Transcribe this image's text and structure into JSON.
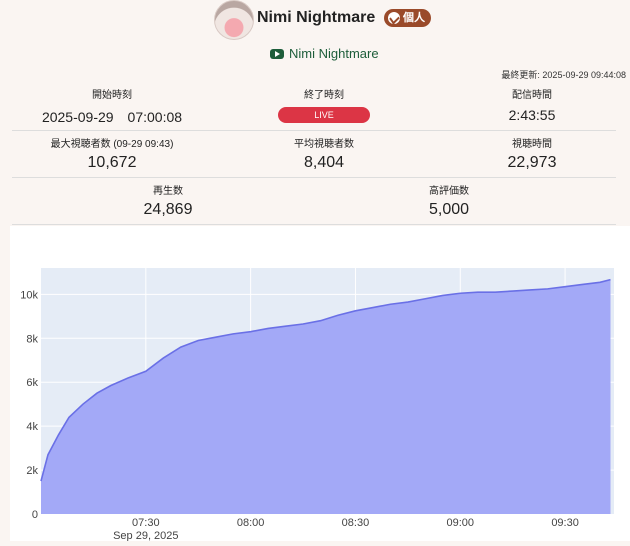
{
  "header": {
    "channel_name": "Nimi Nightmare",
    "badge_label": "個人",
    "youtube_channel": "Nimi Nightmare"
  },
  "updated": "最終更新: 2025-09-29 09:44:08",
  "stats": {
    "start_label": "開始時刻",
    "start_value": "2025-09-29　07:00:08",
    "end_label": "終了時刻",
    "end_value": "LIVE",
    "duration_label": "配信時間",
    "duration_value": "2:43:55",
    "max_viewers_label": "最大視聴者数 (09-29 09:43)",
    "max_viewers_value": "10,672",
    "avg_viewers_label": "平均視聴者数",
    "avg_viewers_value": "8,404",
    "watch_time_label": "視聴時間",
    "watch_time_value": "22,973",
    "plays_label": "再生数",
    "plays_value": "24,869",
    "likes_label": "高評価数",
    "likes_value": "5,000"
  },
  "colors": {
    "live": "#dc3545",
    "area_fill": "#a3a9f7",
    "area_line": "#6a70e6",
    "plot_bg": "#e5ecf6"
  },
  "chart_data": {
    "type": "area",
    "x": [
      "07:00",
      "07:02",
      "07:05",
      "07:08",
      "07:12",
      "07:16",
      "07:20",
      "07:25",
      "07:30",
      "07:35",
      "07:40",
      "07:45",
      "07:50",
      "07:55",
      "08:00",
      "08:05",
      "08:10",
      "08:15",
      "08:20",
      "08:25",
      "08:30",
      "08:35",
      "08:40",
      "08:45",
      "08:50",
      "08:55",
      "09:00",
      "09:05",
      "09:10",
      "09:15",
      "09:20",
      "09:25",
      "09:30",
      "09:35",
      "09:40",
      "09:43"
    ],
    "values": [
      1500,
      2700,
      3600,
      4400,
      5000,
      5500,
      5850,
      6200,
      6500,
      7100,
      7600,
      7900,
      8050,
      8200,
      8300,
      8450,
      8550,
      8650,
      8800,
      9050,
      9250,
      9400,
      9550,
      9650,
      9800,
      9950,
      10050,
      10100,
      10100,
      10150,
      10200,
      10250,
      10350,
      10450,
      10550,
      10672
    ],
    "x_ticks": [
      "07:30",
      "08:00",
      "08:30",
      "09:00",
      "09:30"
    ],
    "x_date_label": "Sep 29, 2025",
    "y_ticks": [
      "0",
      "2k",
      "4k",
      "6k",
      "8k",
      "10k"
    ],
    "ylim": [
      0,
      11200
    ],
    "grid": true
  }
}
